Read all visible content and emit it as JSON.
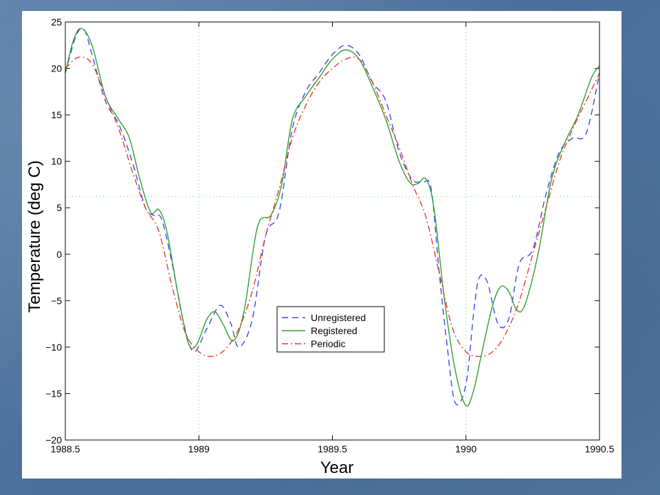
{
  "chart_data": {
    "type": "line",
    "title": "",
    "xlabel": "Year",
    "ylabel": "Temperature (deg C)",
    "xlim": [
      1988.5,
      1990.5
    ],
    "ylim": [
      -20,
      25
    ],
    "xticks": [
      1988.5,
      1989,
      1989.5,
      1990,
      1990.5
    ],
    "xtick_labels": [
      "1988.5",
      "1989",
      "1989.5",
      "1990",
      "1990.5"
    ],
    "yticks": [
      -20,
      -15,
      -10,
      -5,
      0,
      5,
      10,
      15,
      20,
      25
    ],
    "ytick_labels": [
      "−20",
      "−15",
      "−10",
      "−5",
      "0",
      "5",
      "10",
      "15",
      "20",
      "25"
    ],
    "reference_lines": {
      "x": [
        1989,
        1990
      ],
      "y": [
        6.2
      ]
    },
    "legend_position": "center",
    "series": [
      {
        "name": "Unregistered",
        "color": "#3c46f0",
        "dash": "dashed",
        "x": [
          1988.5,
          1988.54,
          1988.57,
          1988.6,
          1988.65,
          1988.7,
          1988.75,
          1988.8,
          1988.83,
          1988.86,
          1988.9,
          1988.94,
          1988.98,
          1989.03,
          1989.08,
          1989.12,
          1989.15,
          1989.2,
          1989.25,
          1989.3,
          1989.35,
          1989.4,
          1989.45,
          1989.5,
          1989.55,
          1989.6,
          1989.65,
          1989.7,
          1989.75,
          1989.8,
          1989.84,
          1989.87,
          1989.9,
          1989.93,
          1989.96,
          1990.0,
          1990.03,
          1990.05,
          1990.08,
          1990.12,
          1990.16,
          1990.2,
          1990.25,
          1990.3,
          1990.35,
          1990.4,
          1990.45,
          1990.5
        ],
        "y": [
          19.5,
          23.5,
          24.2,
          21.5,
          16.5,
          14.0,
          10.0,
          5.0,
          4.2,
          3.8,
          -1.0,
          -7.0,
          -10.5,
          -8.0,
          -5.5,
          -7.5,
          -10.0,
          -7.0,
          2.0,
          4.5,
          13.5,
          17.5,
          19.5,
          21.5,
          22.5,
          21.5,
          18.5,
          16.5,
          11.0,
          8.0,
          7.8,
          7.0,
          -2.0,
          -10.0,
          -16.0,
          -14.0,
          -6.0,
          -2.5,
          -3.0,
          -7.5,
          -7.0,
          -1.0,
          0.5,
          6.5,
          11.0,
          12.5,
          13.0,
          19.5
        ]
      },
      {
        "name": "Registered",
        "color": "#2ca02c",
        "dash": "solid",
        "x": [
          1988.5,
          1988.53,
          1988.56,
          1988.6,
          1988.65,
          1988.7,
          1988.74,
          1988.78,
          1988.82,
          1988.85,
          1988.88,
          1988.92,
          1988.96,
          1988.99,
          1989.03,
          1989.06,
          1989.09,
          1989.13,
          1989.17,
          1989.22,
          1989.27,
          1989.31,
          1989.35,
          1989.4,
          1989.45,
          1989.5,
          1989.55,
          1989.6,
          1989.65,
          1989.7,
          1989.75,
          1989.79,
          1989.82,
          1989.85,
          1989.88,
          1989.92,
          1989.96,
          1990.0,
          1990.03,
          1990.06,
          1990.1,
          1990.13,
          1990.16,
          1990.19,
          1990.22,
          1990.27,
          1990.32,
          1990.37,
          1990.42,
          1990.47,
          1990.5
        ],
        "y": [
          19.5,
          23.0,
          24.3,
          22.5,
          17.0,
          14.5,
          12.5,
          8.0,
          4.5,
          4.8,
          2.5,
          -4.0,
          -9.5,
          -9.8,
          -7.0,
          -6.2,
          -7.5,
          -9.3,
          -6.0,
          3.0,
          4.2,
          7.5,
          14.5,
          17.0,
          19.0,
          21.0,
          22.0,
          21.0,
          18.0,
          14.5,
          10.0,
          7.7,
          7.6,
          8.1,
          5.0,
          -5.0,
          -12.5,
          -16.3,
          -14.5,
          -10.5,
          -5.5,
          -3.5,
          -4.0,
          -6.0,
          -5.5,
          0.0,
          8.0,
          12.0,
          15.0,
          19.0,
          20.3
        ]
      },
      {
        "name": "Periodic",
        "color": "#e8382d",
        "dash": "dashdot",
        "x": [
          1988.5,
          1988.55,
          1988.6,
          1988.65,
          1988.7,
          1988.75,
          1988.8,
          1988.85,
          1988.9,
          1988.95,
          1989.0,
          1989.05,
          1989.1,
          1989.15,
          1989.2,
          1989.25,
          1989.3,
          1989.35,
          1989.4,
          1989.45,
          1989.5,
          1989.55,
          1989.6,
          1989.65,
          1989.7,
          1989.75,
          1989.8,
          1989.85,
          1989.9,
          1989.95,
          1990.0,
          1990.05,
          1990.1,
          1990.15,
          1990.2,
          1990.25,
          1990.3,
          1990.35,
          1990.4,
          1990.45,
          1990.5
        ],
        "y": [
          20.0,
          21.2,
          20.5,
          17.0,
          13.5,
          9.0,
          5.0,
          2.5,
          -3.5,
          -8.5,
          -10.5,
          -11.0,
          -10.2,
          -8.0,
          -4.0,
          2.0,
          7.0,
          12.5,
          16.0,
          18.5,
          20.0,
          21.0,
          21.0,
          18.5,
          15.0,
          11.5,
          7.5,
          4.0,
          -2.0,
          -8.0,
          -10.5,
          -11.0,
          -10.5,
          -8.5,
          -5.0,
          0.0,
          5.0,
          10.0,
          13.5,
          16.5,
          19.5
        ]
      }
    ]
  }
}
